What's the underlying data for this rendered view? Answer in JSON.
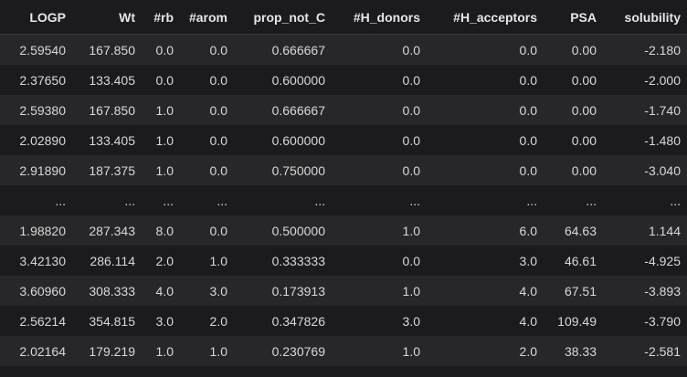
{
  "table": {
    "columns": [
      "LOGP",
      "Wt",
      "#rb",
      "#arom",
      "prop_not_C",
      "#H_donors",
      "#H_acceptors",
      "PSA",
      "solubility"
    ],
    "rows": [
      [
        "2.59540",
        "167.850",
        "0.0",
        "0.0",
        "0.666667",
        "0.0",
        "0.0",
        "0.00",
        "-2.180"
      ],
      [
        "2.37650",
        "133.405",
        "0.0",
        "0.0",
        "0.600000",
        "0.0",
        "0.0",
        "0.00",
        "-2.000"
      ],
      [
        "2.59380",
        "167.850",
        "1.0",
        "0.0",
        "0.666667",
        "0.0",
        "0.0",
        "0.00",
        "-1.740"
      ],
      [
        "2.02890",
        "133.405",
        "1.0",
        "0.0",
        "0.600000",
        "0.0",
        "0.0",
        "0.00",
        "-1.480"
      ],
      [
        "2.91890",
        "187.375",
        "1.0",
        "0.0",
        "0.750000",
        "0.0",
        "0.0",
        "0.00",
        "-3.040"
      ],
      [
        "...",
        "...",
        "...",
        "...",
        "...",
        "...",
        "...",
        "...",
        "..."
      ],
      [
        "1.98820",
        "287.343",
        "8.0",
        "0.0",
        "0.500000",
        "1.0",
        "6.0",
        "64.63",
        "1.144"
      ],
      [
        "3.42130",
        "286.114",
        "2.0",
        "1.0",
        "0.333333",
        "0.0",
        "3.0",
        "46.61",
        "-4.925"
      ],
      [
        "3.60960",
        "308.333",
        "4.0",
        "3.0",
        "0.173913",
        "1.0",
        "4.0",
        "67.51",
        "-3.893"
      ],
      [
        "2.56214",
        "354.815",
        "3.0",
        "2.0",
        "0.347826",
        "3.0",
        "4.0",
        "109.49",
        "-3.790"
      ],
      [
        "2.02164",
        "179.219",
        "1.0",
        "1.0",
        "0.230769",
        "1.0",
        "2.0",
        "38.33",
        "-2.581"
      ]
    ]
  }
}
